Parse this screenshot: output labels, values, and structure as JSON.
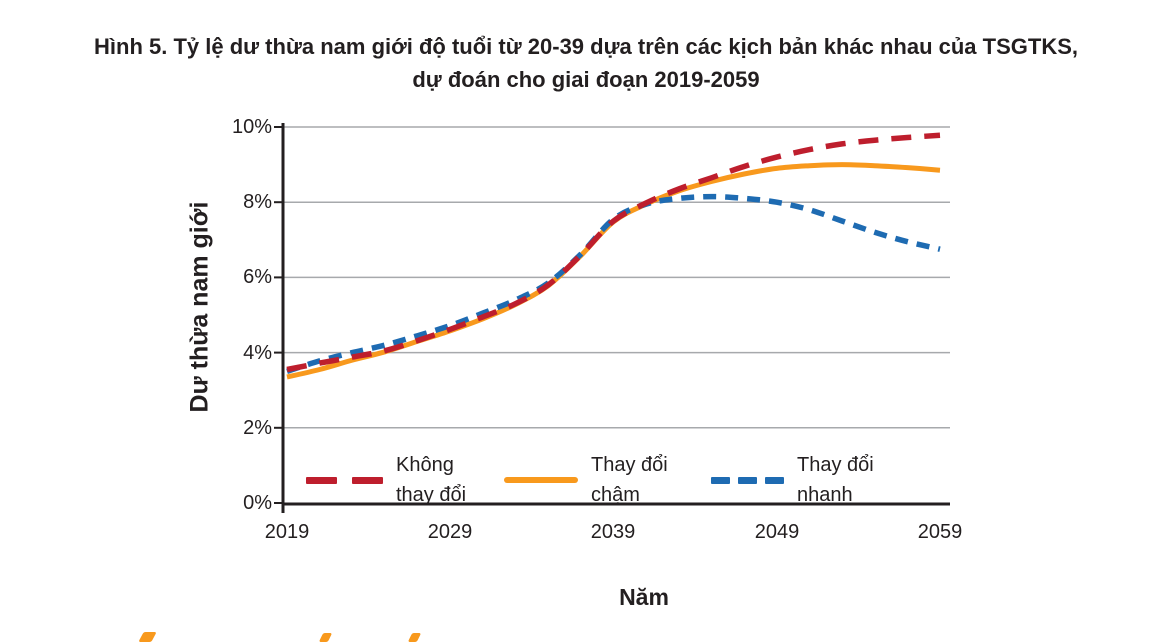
{
  "figure": {
    "title_line1": "Hình 5. Tỷ lệ dư thừa nam giới độ tuổi từ 20-39 dựa trên các kịch bản khác nhau của TSGTKS,",
    "title_line2": "dự đoán cho giai đoạn 2019-2059"
  },
  "chart_data": {
    "type": "line",
    "title": "Hình 5. Tỷ lệ dư thừa nam giới độ tuổi từ 20-39 dựa trên các kịch bản khác nhau của TSGTKS, dự đoán cho giai đoạn 2019-2059",
    "xlabel": "Năm",
    "ylabel": "Dư thừa nam giới",
    "xlim": [
      2019,
      2059
    ],
    "ylim": [
      0,
      10
    ],
    "grid": "horizontal-only",
    "legend_position": "bottom-inside-plot",
    "x_tick_labels": [
      "2019",
      "2029",
      "2039",
      "2049",
      "2059"
    ],
    "y_tick_labels_desc": [
      "10%",
      "8%",
      "6%",
      "4%",
      "2%",
      "0%"
    ],
    "y_grid_values": [
      2,
      4,
      6,
      8,
      10
    ],
    "x": [
      2019,
      2021,
      2023,
      2025,
      2027,
      2029,
      2031,
      2033,
      2035,
      2037,
      2039,
      2041,
      2043,
      2045,
      2047,
      2049,
      2051,
      2053,
      2055,
      2057,
      2059
    ],
    "series": [
      {
        "name": "Không thay đổi",
        "legend_label_line1": "Không",
        "legend_label_line2": "thay đổi",
        "color": "#be1e2d",
        "line_style": "long-dash",
        "unit": "%",
        "values": [
          3.55,
          3.72,
          3.88,
          4.05,
          4.32,
          4.62,
          4.95,
          5.3,
          5.8,
          6.6,
          7.5,
          7.98,
          8.35,
          8.65,
          8.95,
          9.2,
          9.4,
          9.55,
          9.65,
          9.72,
          9.78
        ]
      },
      {
        "name": "Thay đổi chậm",
        "legend_label_line1": "Thay đổi",
        "legend_label_line2": "chậm",
        "color": "#f8991d",
        "line_style": "solid",
        "unit": "%",
        "values": [
          3.35,
          3.55,
          3.8,
          4.02,
          4.3,
          4.58,
          4.9,
          5.28,
          5.78,
          6.58,
          7.48,
          7.95,
          8.3,
          8.55,
          8.75,
          8.9,
          8.97,
          9.0,
          8.97,
          8.92,
          8.85
        ]
      },
      {
        "name": "Thay đổi nhanh",
        "legend_label_line1": "Thay đổi",
        "legend_label_line2": "nhanh",
        "color": "#1e6bb2",
        "line_style": "short-dash",
        "unit": "%",
        "values": [
          3.5,
          3.78,
          4.0,
          4.2,
          4.45,
          4.72,
          5.05,
          5.4,
          5.85,
          6.62,
          7.55,
          7.95,
          8.1,
          8.15,
          8.1,
          8.0,
          7.8,
          7.5,
          7.2,
          6.95,
          6.75
        ]
      }
    ],
    "axis_color": "#231f20",
    "gridline_color": "#a7a9ac"
  },
  "decor": {
    "cutoff_next_heading_fragment_color": "#f8991d"
  }
}
